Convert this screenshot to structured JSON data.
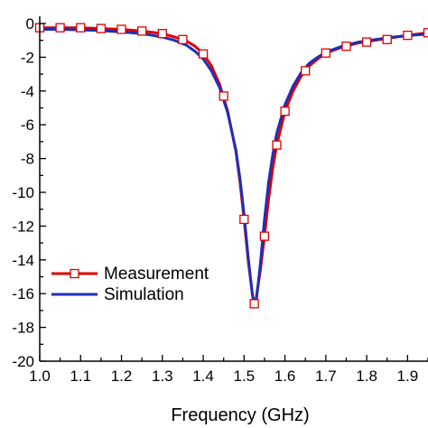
{
  "chart_data": {
    "type": "line",
    "title": "",
    "xlabel": "Frequency (GHz)",
    "ylabel": "",
    "xlim": [
      1.0,
      1.95
    ],
    "ylim": [
      -20,
      0
    ],
    "xticks": [
      "1.0",
      "1.1",
      "1.2",
      "1.3",
      "1.4",
      "1.5",
      "1.6",
      "1.7",
      "1.8",
      "1.9"
    ],
    "yticks": [
      "0",
      "-2",
      "-4",
      "-6",
      "-8",
      "-10",
      "-12",
      "-14",
      "-16",
      "-18",
      "-20"
    ],
    "grid": false,
    "legend_position": "bottom-left",
    "series": [
      {
        "name": "Measurement",
        "color": "#dd0000",
        "marker": "open-square",
        "x": [
          1.0,
          1.05,
          1.1,
          1.15,
          1.2,
          1.25,
          1.3,
          1.33,
          1.36,
          1.38,
          1.4,
          1.42,
          1.44,
          1.46,
          1.48,
          1.49,
          1.5,
          1.51,
          1.52,
          1.525,
          1.53,
          1.54,
          1.55,
          1.56,
          1.57,
          1.58,
          1.6,
          1.62,
          1.64,
          1.66,
          1.68,
          1.7,
          1.74,
          1.78,
          1.82,
          1.86,
          1.9,
          1.95
        ],
        "y": [
          -0.25,
          -0.25,
          -0.25,
          -0.3,
          -0.35,
          -0.45,
          -0.6,
          -0.8,
          -1.05,
          -1.35,
          -1.8,
          -2.5,
          -3.6,
          -5.2,
          -7.6,
          -9.4,
          -11.6,
          -14.0,
          -16.0,
          -16.6,
          -16.2,
          -14.6,
          -12.6,
          -10.4,
          -8.6,
          -7.2,
          -5.2,
          -4.0,
          -3.1,
          -2.5,
          -2.1,
          -1.75,
          -1.4,
          -1.15,
          -1.0,
          -0.85,
          -0.7,
          -0.55
        ],
        "marker_x": [
          1.0,
          1.05,
          1.1,
          1.15,
          1.2,
          1.25,
          1.3,
          1.35,
          1.4,
          1.45,
          1.5,
          1.525,
          1.55,
          1.58,
          1.6,
          1.65,
          1.7,
          1.75,
          1.8,
          1.85,
          1.9,
          1.95
        ],
        "marker_y": [
          -0.25,
          -0.25,
          -0.25,
          -0.3,
          -0.35,
          -0.45,
          -0.6,
          -0.95,
          -1.8,
          -4.3,
          -11.6,
          -16.6,
          -12.6,
          -7.2,
          -5.2,
          -2.8,
          -1.75,
          -1.35,
          -1.1,
          -0.95,
          -0.7,
          -0.55
        ]
      },
      {
        "name": "Simulation",
        "color": "#1f2fb5",
        "x": [
          1.0,
          1.05,
          1.1,
          1.15,
          1.2,
          1.25,
          1.3,
          1.33,
          1.36,
          1.38,
          1.4,
          1.42,
          1.44,
          1.46,
          1.48,
          1.49,
          1.5,
          1.51,
          1.52,
          1.525,
          1.53,
          1.54,
          1.55,
          1.56,
          1.57,
          1.58,
          1.6,
          1.62,
          1.64,
          1.66,
          1.68,
          1.7,
          1.74,
          1.78,
          1.82,
          1.86,
          1.9,
          1.95
        ],
        "y": [
          -0.35,
          -0.35,
          -0.38,
          -0.42,
          -0.5,
          -0.6,
          -0.8,
          -1.0,
          -1.3,
          -1.65,
          -2.1,
          -2.8,
          -3.8,
          -5.3,
          -7.5,
          -9.2,
          -11.3,
          -13.8,
          -16.0,
          -16.8,
          -16.4,
          -14.2,
          -11.6,
          -9.4,
          -7.8,
          -6.5,
          -4.8,
          -3.7,
          -2.9,
          -2.35,
          -2.0,
          -1.7,
          -1.35,
          -1.1,
          -0.95,
          -0.82,
          -0.72,
          -0.62
        ]
      }
    ]
  }
}
